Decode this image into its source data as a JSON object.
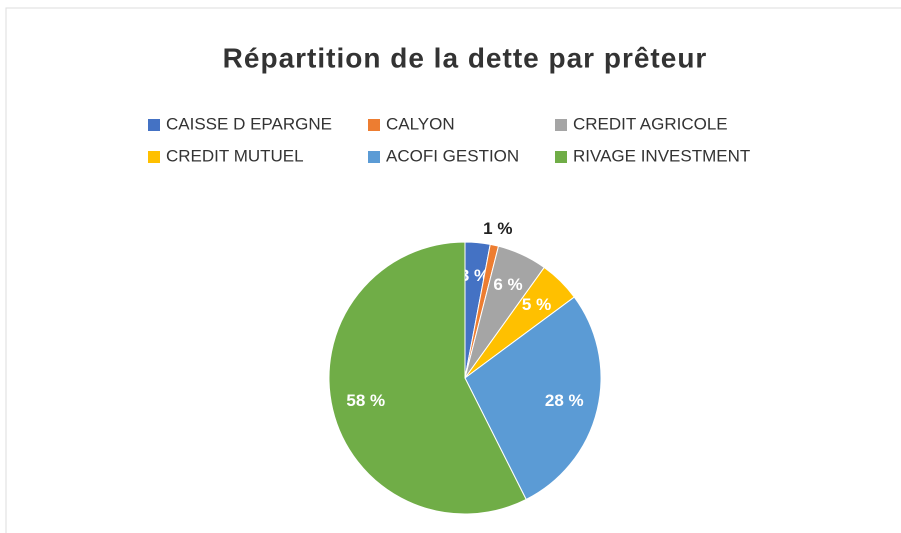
{
  "chart_data": {
    "type": "pie",
    "title": "Répartition de la dette par prêteur",
    "categories": [
      "CAISSE D EPARGNE",
      "CALYON",
      "CREDIT AGRICOLE",
      "CREDIT MUTUEL",
      "ACOFI GESTION",
      "RIVAGE INVESTMENT"
    ],
    "values": [
      3,
      1,
      6,
      5,
      28,
      58
    ],
    "value_labels": [
      "3 %",
      "1 %",
      "6 %",
      "5 %",
      "28 %",
      "58 %"
    ],
    "colors": [
      "#4472c4",
      "#ed7d31",
      "#a5a5a5",
      "#ffc000",
      "#5b9bd5",
      "#70ad47"
    ]
  }
}
